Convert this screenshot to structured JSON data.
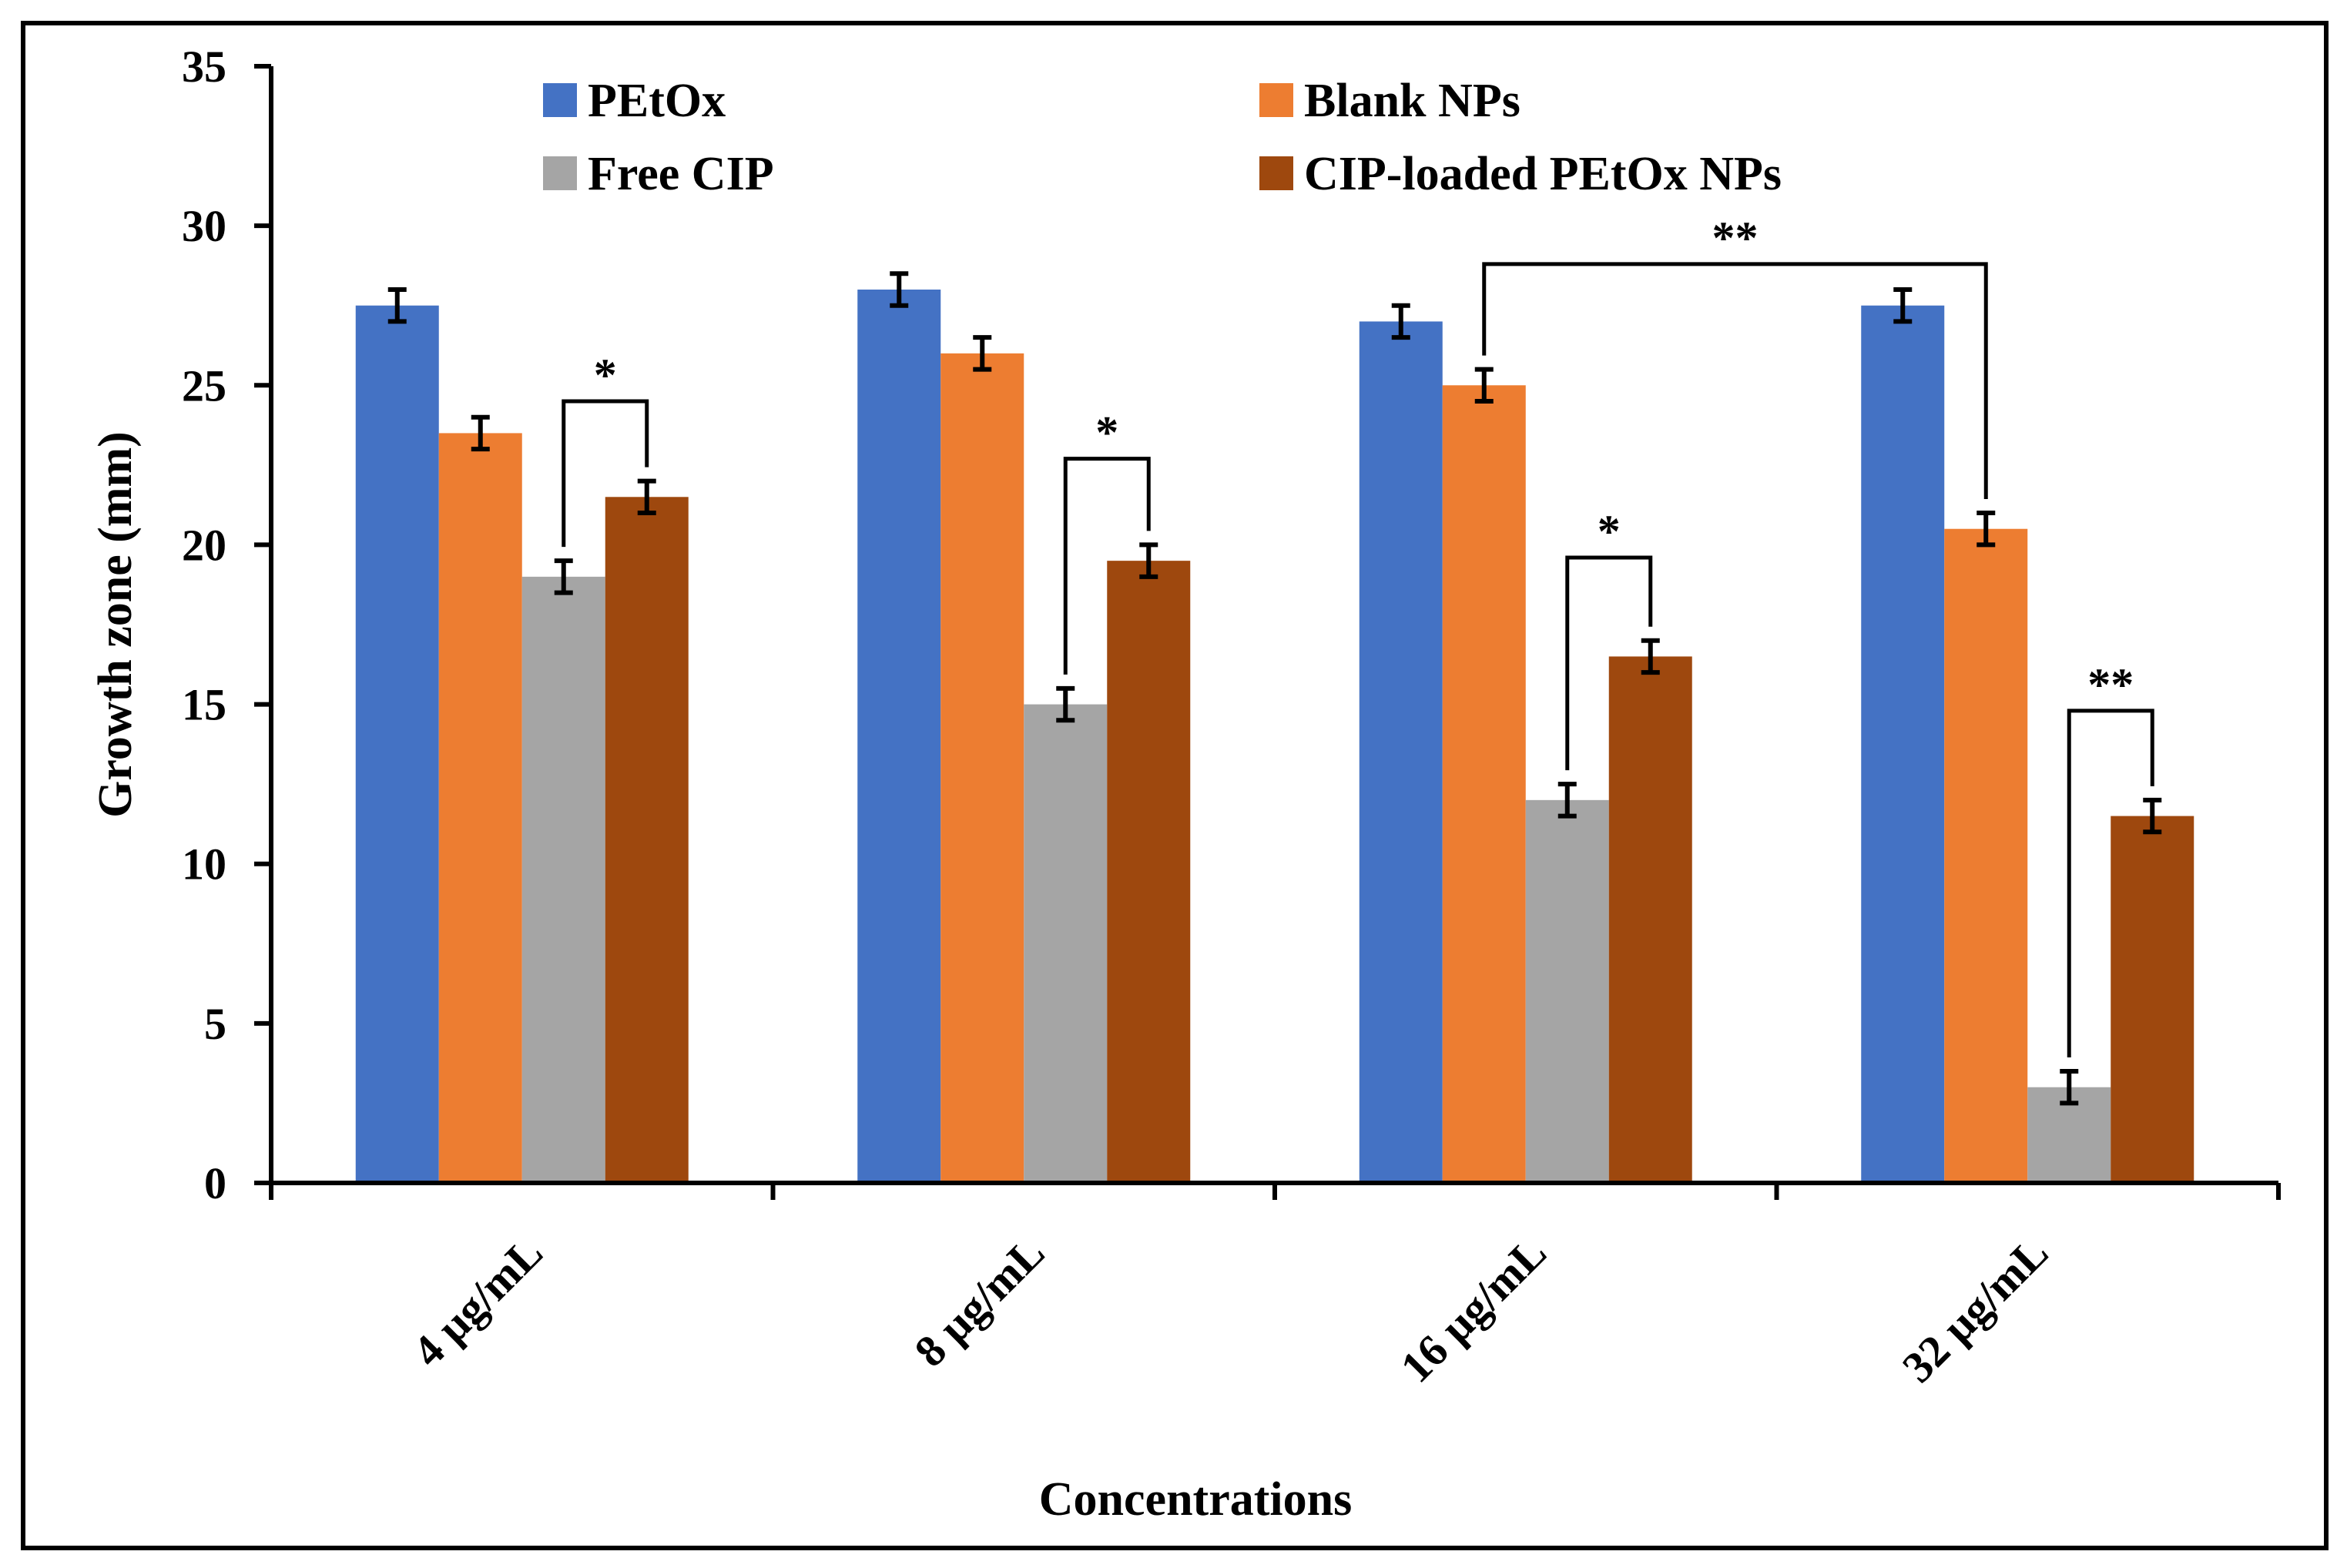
{
  "chart_data": {
    "type": "bar",
    "title": "",
    "xlabel": "Concentrations",
    "ylabel": "Growth zone (mm)",
    "ylim": [
      0,
      35
    ],
    "yticks": [
      0,
      5,
      10,
      15,
      20,
      25,
      30,
      35
    ],
    "grid": false,
    "legend_position": "top",
    "categories": [
      "4 µg/mL",
      "8 µg/mL",
      "16 µg/mL",
      "32 µg/mL"
    ],
    "series": [
      {
        "name": "PEtOx",
        "color": "#4472C4",
        "values": [
          27.5,
          28,
          27,
          27.5
        ],
        "errors": [
          0.5,
          0.5,
          0.5,
          0.5
        ]
      },
      {
        "name": "Blank NPs",
        "color": "#ED7D31",
        "values": [
          23.5,
          26,
          25,
          20.5
        ],
        "errors": [
          0.5,
          0.5,
          0.5,
          0.5
        ]
      },
      {
        "name": "Free CIP",
        "color": "#A5A5A5",
        "values": [
          19,
          15,
          12,
          3
        ],
        "errors": [
          0.5,
          0.5,
          0.5,
          0.5
        ]
      },
      {
        "name": "CIP-loaded PEtOx NPs",
        "color": "#9E480E",
        "values": [
          21.5,
          19.5,
          16.5,
          11.5
        ],
        "errors": [
          0.5,
          0.5,
          0.5,
          0.5
        ]
      }
    ],
    "significance": [
      {
        "label": "*",
        "from": {
          "category": 0,
          "series": 2
        },
        "to": {
          "category": 0,
          "series": 3
        },
        "level": 24.5
      },
      {
        "label": "*",
        "from": {
          "category": 1,
          "series": 2
        },
        "to": {
          "category": 1,
          "series": 3
        },
        "level": 22.7
      },
      {
        "label": "*",
        "from": {
          "category": 2,
          "series": 2
        },
        "to": {
          "category": 2,
          "series": 3
        },
        "level": 19.6
      },
      {
        "label": "**",
        "from": {
          "category": 2,
          "series": 1
        },
        "to": {
          "category": 3,
          "series": 1
        },
        "level": 28.8
      },
      {
        "label": "**",
        "from": {
          "category": 3,
          "series": 2
        },
        "to": {
          "category": 3,
          "series": 3
        },
        "level": 14.8
      }
    ]
  }
}
